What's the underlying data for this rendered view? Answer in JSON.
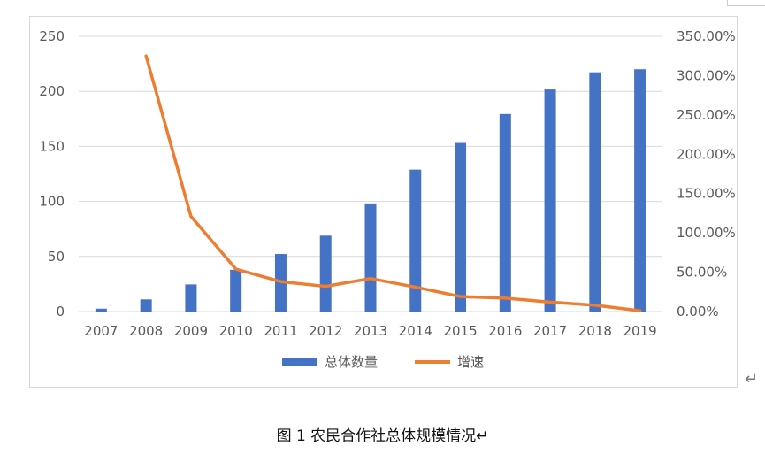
{
  "chart_data": {
    "type": "bar+line",
    "categories": [
      "2007",
      "2008",
      "2009",
      "2010",
      "2011",
      "2012",
      "2013",
      "2014",
      "2015",
      "2016",
      "2017",
      "2018",
      "2019"
    ],
    "series": [
      {
        "name": "总体数量",
        "type": "bar",
        "axis": "left",
        "values": [
          2.6,
          11,
          24.6,
          37.9,
          52.2,
          68.9,
          98.2,
          128.9,
          153.1,
          179.4,
          201.7,
          217.3,
          220.1
        ]
      },
      {
        "name": "增速",
        "type": "line",
        "axis": "right",
        "values": [
          null,
          3.25,
          1.21,
          0.54,
          0.38,
          0.32,
          0.42,
          0.31,
          0.19,
          0.17,
          0.12,
          0.08,
          0.01
        ]
      }
    ],
    "y_left": {
      "ylim": [
        0,
        250
      ],
      "ticks": [
        "0",
        "50",
        "100",
        "150",
        "200",
        "250"
      ]
    },
    "y_right": {
      "ylim": [
        0,
        3.5
      ],
      "ticks": [
        "0.00%",
        "50.00%",
        "100.00%",
        "150.00%",
        "200.00%",
        "250.00%",
        "300.00%",
        "350.00%"
      ]
    },
    "grid": true,
    "legend_position": "bottom",
    "colors": {
      "bar": "#4472C4",
      "line": "#ED7D31",
      "grid": "#d9d9d9"
    }
  },
  "caption": {
    "text": "图 1 农民合作社总体规模情况↵"
  },
  "return_mark": "↵"
}
